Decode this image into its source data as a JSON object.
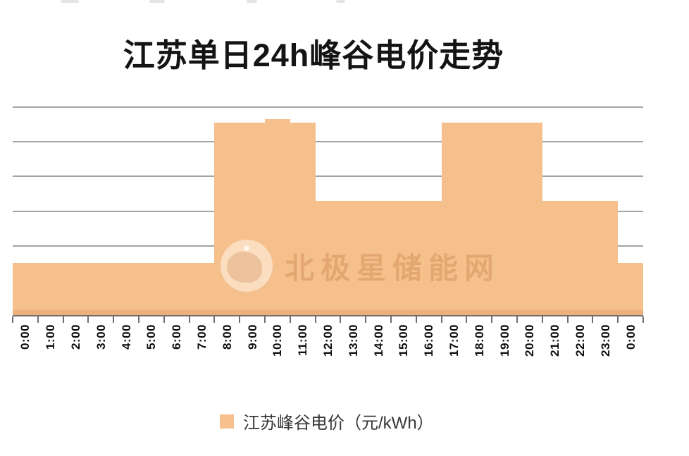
{
  "chart_data": {
    "type": "area",
    "title": "江苏单日24h峰谷电价走势",
    "categories": [
      "0:00",
      "1:00",
      "2:00",
      "3:00",
      "4:00",
      "5:00",
      "6:00",
      "7:00",
      "8:00",
      "9:00",
      "10:00",
      "11:00",
      "12:00",
      "13:00",
      "14:00",
      "15:00",
      "16:00",
      "17:00",
      "18:00",
      "19:00",
      "20:00",
      "21:00",
      "22:00",
      "23:00",
      "0:00"
    ],
    "series": [
      {
        "name": "江苏峰谷电价（元/kWh）",
        "values": [
          0.3,
          0.3,
          0.3,
          0.3,
          0.3,
          0.3,
          0.3,
          0.3,
          1.11,
          1.11,
          1.13,
          1.11,
          0.66,
          0.66,
          0.66,
          0.66,
          0.66,
          1.11,
          1.11,
          1.11,
          1.11,
          0.66,
          0.66,
          0.66,
          0.3
        ]
      }
    ],
    "xlabel": "",
    "ylabel": "",
    "ylim": [
      0,
      1.2
    ],
    "gridline_step": 0.2,
    "grid": true,
    "y_tick_labels_shown": false,
    "x_label_rotation": -90,
    "legend_position": "bottom"
  },
  "watermark": {
    "text": "北极星储能网",
    "logo": "polar-star-logo"
  },
  "colors": {
    "series_fill": "#F6C08D",
    "series_fill_bottom_edge": "#EDAF7C",
    "gridline": "#A3A3A3",
    "axis": "#6E6E6E",
    "title_text": "#141414",
    "axis_label_text": "#0C0C0C",
    "legend_text": "#373737",
    "background": "#FFFFFF"
  }
}
